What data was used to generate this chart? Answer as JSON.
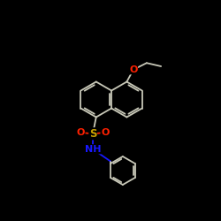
{
  "background_color": "#000000",
  "bond_color": "#c8c8b8",
  "atom_colors": {
    "O": "#ff2000",
    "S": "#c8a000",
    "N": "#1818ff"
  },
  "figsize": [
    2.5,
    2.5
  ],
  "dpi": 100,
  "lw": 1.3
}
